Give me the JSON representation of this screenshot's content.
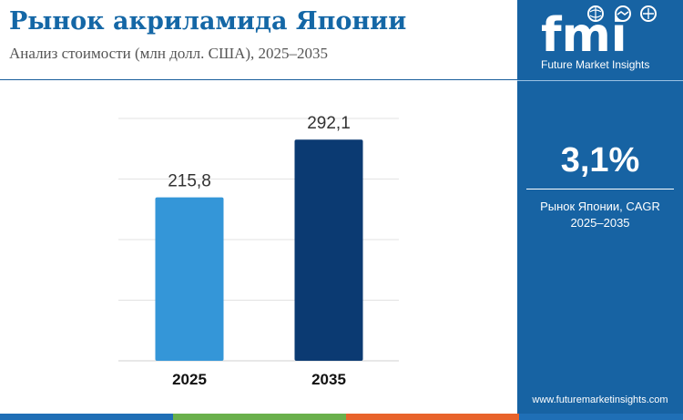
{
  "title": "Рынок акриламида Японии",
  "subtitle": "Анализ стоимости (млн долл. США), 2025–2035",
  "brand": {
    "logo_text": "fmi",
    "name": "Future Market Insights",
    "website": "www.futuremarketinsights.com",
    "logo_icons": [
      "globe-icon",
      "handshake-icon",
      "idea-icon"
    ]
  },
  "cagr": {
    "value": "3,1%",
    "label_line1": "Рынок Японии, CAGR",
    "label_line2": "2025–2035"
  },
  "colors": {
    "title": "#1467a6",
    "panel": "#1763a3",
    "bar_2025": "#3496d8",
    "bar_2035": "#0b3a72",
    "footer_bar": [
      "#1f6fb6",
      "#6ab04c",
      "#e8632b",
      "#1f6fb6"
    ]
  },
  "chart_data": {
    "type": "bar",
    "title": "",
    "xlabel": "",
    "ylabel": "",
    "categories": [
      "2025",
      "2035"
    ],
    "values": [
      215.8,
      292.1
    ],
    "value_labels": [
      "215,8",
      "292,1"
    ],
    "ylim": [
      0,
      320
    ],
    "grid": true,
    "legend": "none"
  }
}
